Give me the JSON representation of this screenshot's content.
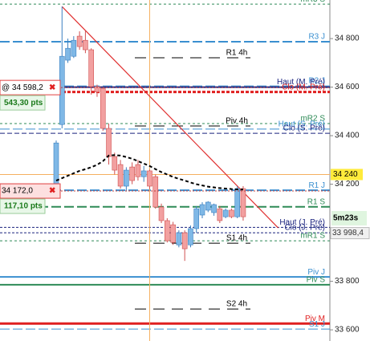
{
  "chart_data": {
    "type": "candlestick",
    "ylim": [
      33554,
      34959
    ],
    "yticks": [
      {
        "value": 33600,
        "label": "33 600"
      },
      {
        "value": 33800,
        "label": "33 800"
      },
      {
        "value": 34200,
        "label": "34 200"
      },
      {
        "value": 34400,
        "label": "34 400"
      },
      {
        "value": 34600,
        "label": "34 600"
      },
      {
        "value": 34800,
        "label": "34 800"
      }
    ],
    "up_color": "#7fb8e6",
    "down_color": "#f2a0a0",
    "candles": [
      [
        34192,
        34380,
        34180,
        34370
      ],
      [
        34446,
        34932,
        34430,
        34727
      ],
      [
        34711,
        34800,
        34700,
        34760
      ],
      [
        34727,
        34810,
        34720,
        34793
      ],
      [
        34810,
        34830,
        34754,
        34767
      ],
      [
        34793,
        34833,
        34740,
        34754
      ],
      [
        34754,
        34760,
        34569,
        34602
      ],
      [
        34602,
        34610,
        34560,
        34580
      ],
      [
        34595,
        34600,
        34420,
        34430
      ],
      [
        34430,
        34450,
        34281,
        34314
      ],
      [
        34314,
        34330,
        34240,
        34258
      ],
      [
        34281,
        34300,
        34182,
        34192
      ],
      [
        34192,
        34270,
        34170,
        34258
      ],
      [
        34271,
        34290,
        34200,
        34215
      ],
      [
        34281,
        34300,
        34215,
        34231
      ],
      [
        34231,
        34275,
        34210,
        34255
      ],
      [
        34255,
        34260,
        34180,
        34192
      ],
      [
        34231,
        34240,
        34099,
        34106
      ],
      [
        34106,
        34120,
        34040,
        34050
      ],
      [
        34050,
        34060,
        33960,
        33967
      ],
      [
        34033,
        34045,
        33950,
        33960
      ],
      [
        33950,
        34010,
        33940,
        34000
      ],
      [
        34000,
        34010,
        33884,
        33934
      ],
      [
        33950,
        34030,
        33940,
        34017
      ],
      [
        34017,
        34110,
        34000,
        34099
      ],
      [
        34073,
        34126,
        34060,
        34116
      ],
      [
        34093,
        34130,
        34085,
        34126
      ],
      [
        34083,
        34120,
        34070,
        34116
      ],
      [
        34099,
        34110,
        34040,
        34050
      ],
      [
        34066,
        34100,
        34060,
        34093
      ],
      [
        34093,
        34100,
        34060,
        34066
      ],
      [
        34066,
        34192,
        34060,
        34182
      ],
      [
        34182,
        34192,
        34050,
        34066
      ]
    ],
    "moving_average": {
      "color": "#000000",
      "values": [
        34215,
        34225,
        34235,
        34245,
        34255,
        34262,
        34270,
        34280,
        34295,
        34318,
        34320,
        34318,
        34312,
        34305,
        34295,
        34285,
        34275,
        34262,
        34250,
        34240,
        34230,
        34222,
        34215,
        34207,
        34200,
        34195,
        34190,
        34187,
        34184,
        34182,
        34180,
        34179,
        34178
      ]
    },
    "trendline": {
      "color": "#e03030",
      "x": [
        1,
        38
      ],
      "values": [
        34932,
        34020
      ]
    },
    "crosshair": {
      "color": "#f5b060",
      "x": 16,
      "value": 34240,
      "label": "34 240"
    },
    "levels": [
      {
        "name": "mR3 S",
        "value": 34942,
        "color": "#2e8b57",
        "dash": "3,3",
        "width": 1,
        "span": "full"
      },
      {
        "name": "R3 J",
        "value": 34787,
        "color": "#3a8fd0",
        "dash": "12,4",
        "width": 2,
        "span": "full"
      },
      {
        "name": "R1 4h",
        "value": 34721,
        "color": "#000000",
        "dash": "14,9",
        "width": 1,
        "span": "short"
      },
      {
        "name": "R2 J",
        "value": 34605,
        "color": "#3a8fd0",
        "dash": "12,4",
        "width": 1,
        "span": "full"
      },
      {
        "name": "Haut (M. Pré)",
        "value": 34600,
        "color": "#1a237e",
        "dash": "none",
        "width": 2,
        "span": "full"
      },
      {
        "name": "Clo (M. Pré)",
        "value": 34580,
        "color": "#e02020",
        "dash": "4,2",
        "width": 3,
        "span": "full"
      },
      {
        "name": "mR2 S",
        "value": 34450,
        "color": "#2e8b57",
        "dash": "3,3",
        "width": 1,
        "span": "full"
      },
      {
        "name": "Piv 4h",
        "value": 34440,
        "color": "#000000",
        "dash": "14,9",
        "width": 1,
        "span": "short"
      },
      {
        "name": "Haut (S. Pré)",
        "value": 34427,
        "color": "#3a8fd0",
        "dash": "12,4",
        "width": 1,
        "span": "full"
      },
      {
        "name": "Clo (S. Pré)",
        "value": 34410,
        "color": "#1a237e",
        "dash": "6,3",
        "width": 1,
        "span": "full"
      },
      {
        "name": "R1 J",
        "value": 34175,
        "color": "#3a8fd0",
        "dash": "12,4",
        "width": 2,
        "span": "full"
      },
      {
        "name": "R1 S",
        "value": 34107,
        "color": "#2e8b57",
        "dash": "12,4",
        "width": 2,
        "span": "full"
      },
      {
        "name": "Haut (J. Pré)",
        "value": 34022,
        "color": "#1a237e",
        "dash": "3,2",
        "width": 1,
        "span": "full"
      },
      {
        "name": "Clo (J. Pré)",
        "value": 34000,
        "color": "#1a237e",
        "dash": "3,2",
        "width": 1,
        "span": "full"
      },
      {
        "name": "mR1 S",
        "value": 33967,
        "color": "#2e8b57",
        "dash": "3,3",
        "width": 1,
        "span": "full"
      },
      {
        "name": "S1 4h",
        "value": 33957,
        "color": "#000000",
        "dash": "14,9",
        "width": 1,
        "span": "short"
      },
      {
        "name": "Piv J",
        "value": 33818,
        "color": "#3a8fd0",
        "dash": "none",
        "width": 2,
        "span": "full"
      },
      {
        "name": "Piv S",
        "value": 33786,
        "color": "#2e8b57",
        "dash": "none",
        "width": 2,
        "span": "full"
      },
      {
        "name": "S2 4h",
        "value": 33686,
        "color": "#000000",
        "dash": "14,9",
        "width": 1,
        "span": "short"
      },
      {
        "name": "Piv M",
        "value": 33626,
        "color": "#e02020",
        "dash": "none",
        "width": 3,
        "span": "full"
      },
      {
        "name": "S1 J",
        "value": 33603,
        "color": "#3a8fd0",
        "dash": "12,4",
        "width": 1,
        "span": "full"
      }
    ],
    "orders": [
      {
        "label": "@ 34 598,2",
        "value": 34598.2,
        "points": "543,30 pts"
      },
      {
        "label": "34 172,0",
        "value": 34172,
        "points": "117,10 pts"
      }
    ],
    "price_label": {
      "value": 33998.4,
      "label": "33 998,4"
    },
    "countdown": "5m23s"
  }
}
